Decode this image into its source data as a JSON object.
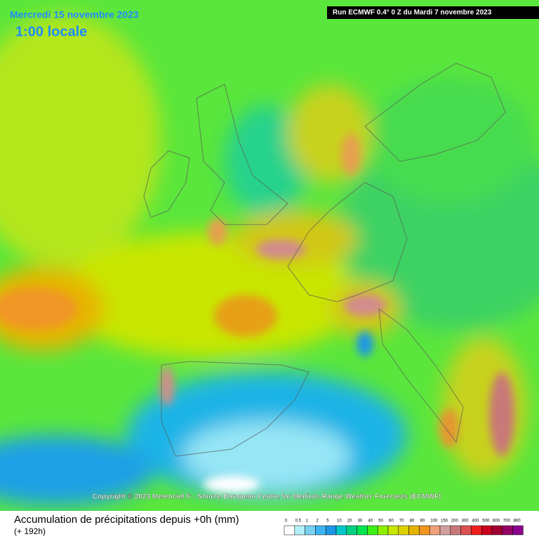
{
  "header": {
    "date": "Mercredi 15 novembre 2023",
    "time": "1:00 locale",
    "run": "Run ECMWF 0.4° 0 Z du Mardi 7 novembre 2023"
  },
  "copyright": "Copyright © 2023 Meteociel.fr - Source European Centre for Medium-Range Weather Forecasts (ECMWF)",
  "footer": {
    "title": "Accumulation de précipitations depuis +0h (mm)",
    "subtitle": "(+ 192h)"
  },
  "legend": [
    {
      "label": "0",
      "color": "#ffffff"
    },
    {
      "label": "0.5",
      "color": "#b4f0fa"
    },
    {
      "label": "1",
      "color": "#78d2f0"
    },
    {
      "label": "2",
      "color": "#3cb4f0"
    },
    {
      "label": "5",
      "color": "#1e96e6"
    },
    {
      "label": "10",
      "color": "#00c8c8"
    },
    {
      "label": "20",
      "color": "#00d282"
    },
    {
      "label": "30",
      "color": "#00e650"
    },
    {
      "label": "40",
      "color": "#3cf014"
    },
    {
      "label": "50",
      "color": "#8cf000"
    },
    {
      "label": "60",
      "color": "#c8e600"
    },
    {
      "label": "70",
      "color": "#dcd200"
    },
    {
      "label": "80",
      "color": "#e6b400"
    },
    {
      "label": "90",
      "color": "#f0961e"
    },
    {
      "label": "100",
      "color": "#f0a078"
    },
    {
      "label": "150",
      "color": "#d2a0a0"
    },
    {
      "label": "200",
      "color": "#c87878"
    },
    {
      "label": "300",
      "color": "#dc5050"
    },
    {
      "label": "400",
      "color": "#f01e1e"
    },
    {
      "label": "500",
      "color": "#c8001e"
    },
    {
      "label": "600",
      "color": "#a00032"
    },
    {
      "label": "700",
      "color": "#960064"
    },
    {
      "label": "800",
      "color": "#8c008c"
    }
  ]
}
